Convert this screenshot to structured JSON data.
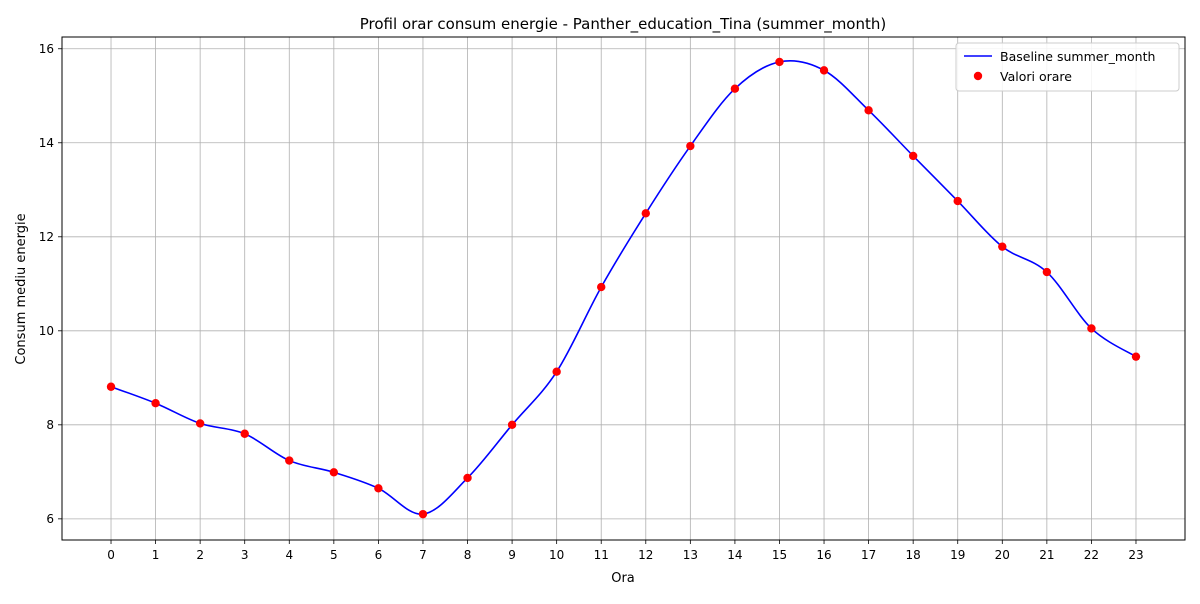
{
  "chart_data": {
    "type": "line",
    "title": "Profil orar consum energie - Panther_education_Tina (summer_month)",
    "xlabel": "Ora",
    "ylabel": "Consum mediu energie",
    "x": [
      0,
      1,
      2,
      3,
      4,
      5,
      6,
      7,
      8,
      9,
      10,
      11,
      12,
      13,
      14,
      15,
      16,
      17,
      18,
      19,
      20,
      21,
      22,
      23
    ],
    "xlim": [
      -1.1,
      24.1
    ],
    "ylim": [
      5.55,
      16.25
    ],
    "yticks": [
      6,
      8,
      10,
      12,
      14,
      16
    ],
    "grid": true,
    "legend_position": "top-right",
    "series": [
      {
        "name": "Baseline summer_month",
        "kind": "line",
        "color": "#0000ff",
        "values": [
          8.81,
          8.46,
          8.03,
          7.81,
          7.24,
          6.99,
          6.65,
          6.1,
          6.87,
          8.0,
          9.13,
          10.93,
          12.5,
          13.93,
          15.15,
          15.72,
          15.54,
          14.69,
          13.72,
          12.76,
          11.79,
          11.25,
          10.05,
          9.45
        ]
      },
      {
        "name": "Valori orare",
        "kind": "scatter",
        "color": "#ff0000",
        "values": [
          8.81,
          8.46,
          8.03,
          7.81,
          7.24,
          6.99,
          6.65,
          6.1,
          6.87,
          8.0,
          9.13,
          10.93,
          12.5,
          13.93,
          15.15,
          15.72,
          15.54,
          14.69,
          13.72,
          12.76,
          11.79,
          11.25,
          10.05,
          9.45
        ]
      }
    ]
  }
}
